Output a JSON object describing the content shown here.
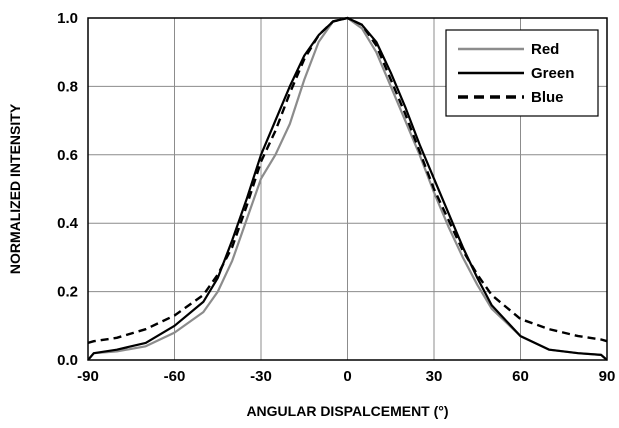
{
  "chart_data": {
    "type": "line",
    "title": "",
    "xlabel": "ANGULAR DISPALCEMENT (°)",
    "ylabel": "NORMALIZED INTENSITY",
    "xlim": [
      -90,
      90
    ],
    "ylim": [
      0,
      1.0
    ],
    "xticks": [
      -90,
      -60,
      -30,
      0,
      30,
      60,
      90
    ],
    "yticks": [
      0.0,
      0.2,
      0.4,
      0.6,
      0.8,
      1.0
    ],
    "xtick_labels": [
      "-90",
      "-60",
      "-30",
      "0",
      "30",
      "60",
      "90"
    ],
    "ytick_labels": [
      "0.0",
      "0.2",
      "0.4",
      "0.6",
      "0.8",
      "1.0"
    ],
    "grid": true,
    "legend_position": "top-right",
    "series": [
      {
        "name": "Red",
        "color": "#8c8c8c",
        "style": "solid",
        "x": [
          -90,
          -88,
          -80,
          -70,
          -60,
          -50,
          -45,
          -40,
          -35,
          -30,
          -25,
          -20,
          -15,
          -10,
          -5,
          0,
          5,
          10,
          15,
          20,
          25,
          30,
          35,
          40,
          45,
          50,
          60,
          70,
          80,
          88,
          90
        ],
        "y": [
          0.0,
          0.02,
          0.025,
          0.04,
          0.08,
          0.14,
          0.2,
          0.29,
          0.41,
          0.53,
          0.6,
          0.69,
          0.82,
          0.93,
          0.99,
          1.0,
          0.97,
          0.9,
          0.8,
          0.7,
          0.6,
          0.49,
          0.39,
          0.3,
          0.22,
          0.15,
          0.07,
          0.03,
          0.02,
          0.015,
          0.0
        ]
      },
      {
        "name": "Green",
        "color": "#000000",
        "style": "solid",
        "x": [
          -90,
          -88,
          -80,
          -70,
          -60,
          -50,
          -45,
          -40,
          -35,
          -30,
          -25,
          -20,
          -15,
          -10,
          -5,
          0,
          5,
          10,
          15,
          20,
          25,
          30,
          35,
          40,
          45,
          50,
          60,
          70,
          80,
          88,
          90
        ],
        "y": [
          0.0,
          0.02,
          0.03,
          0.05,
          0.1,
          0.17,
          0.24,
          0.35,
          0.47,
          0.6,
          0.7,
          0.8,
          0.89,
          0.95,
          0.99,
          1.0,
          0.98,
          0.93,
          0.84,
          0.74,
          0.63,
          0.53,
          0.43,
          0.33,
          0.24,
          0.16,
          0.07,
          0.03,
          0.02,
          0.015,
          0.0
        ]
      },
      {
        "name": "Blue",
        "color": "#000000",
        "style": "dashed",
        "x": [
          -90,
          -88,
          -80,
          -70,
          -60,
          -50,
          -45,
          -40,
          -35,
          -30,
          -25,
          -20,
          -15,
          -10,
          -5,
          0,
          5,
          10,
          15,
          20,
          25,
          30,
          35,
          40,
          45,
          50,
          60,
          70,
          80,
          88,
          90
        ],
        "y": [
          0.05,
          0.055,
          0.065,
          0.09,
          0.13,
          0.19,
          0.25,
          0.33,
          0.45,
          0.58,
          0.67,
          0.78,
          0.88,
          0.95,
          0.99,
          1.0,
          0.98,
          0.92,
          0.82,
          0.72,
          0.61,
          0.5,
          0.41,
          0.32,
          0.25,
          0.19,
          0.12,
          0.09,
          0.07,
          0.06,
          0.055
        ]
      }
    ]
  }
}
